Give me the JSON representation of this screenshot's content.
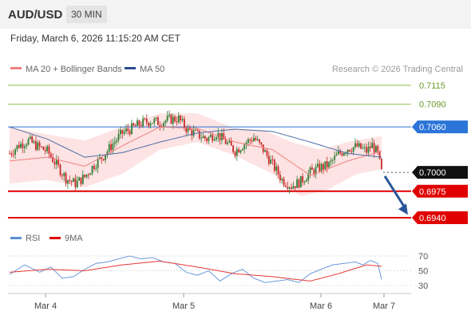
{
  "header": {
    "pair": "AUD/USD",
    "interval": "30 MIN"
  },
  "datetime": "Friday, March 6, 2026 11:15:20 AM CET",
  "legend": {
    "ma20_bb": "MA 20 + Bollinger Bands",
    "ma50": "MA 50",
    "rsi": "RSI",
    "rsi_ma": "9MA",
    "credit": "Research © 2026 Trading Central"
  },
  "colors": {
    "up": "#2e7d32",
    "down": "#c62828",
    "ma20": "#f08080",
    "band_fill": "#fde0e0",
    "ma50": "#4a6ea9",
    "resistance_green": "#8bc34a",
    "pivot": "#2b74d8",
    "support": "#e00000",
    "rsi": "#5b8fd6",
    "rsi_ma": "#e53935",
    "arrow": "#2a5699"
  },
  "chart_data": [
    {
      "type": "candlestick",
      "title": "AUD/USD",
      "interval": "30 MIN",
      "x_ticks": [
        "Mar 4",
        "Mar 5",
        "Mar 6",
        "Mar 7"
      ],
      "y_range": [
        0.6935,
        0.7125
      ],
      "levels": [
        {
          "value": "0.7115",
          "kind": "resistance",
          "color": "#8bc34a"
        },
        {
          "value": "0.7090",
          "kind": "resistance",
          "color": "#8bc34a"
        },
        {
          "value": "0.7060",
          "kind": "pivot",
          "color": "#2b74d8"
        },
        {
          "value": "0.7000",
          "kind": "last",
          "color": "#111111"
        },
        {
          "value": "0.6975",
          "kind": "support",
          "color": "#e00000"
        },
        {
          "value": "0.6940",
          "kind": "support",
          "color": "#e00000"
        }
      ],
      "close_path": [
        [
          0,
          0.7025
        ],
        [
          5,
          0.7036
        ],
        [
          10,
          0.7042
        ],
        [
          15,
          0.7034
        ],
        [
          20,
          0.7028
        ],
        [
          25,
          0.701
        ],
        [
          30,
          0.6992
        ],
        [
          35,
          0.6985
        ],
        [
          40,
          0.6994
        ],
        [
          45,
          0.701
        ],
        [
          50,
          0.7022
        ],
        [
          55,
          0.7038
        ],
        [
          60,
          0.7052
        ],
        [
          65,
          0.7058
        ],
        [
          70,
          0.7065
        ],
        [
          75,
          0.7068
        ],
        [
          80,
          0.7066
        ],
        [
          85,
          0.707
        ],
        [
          90,
          0.7071
        ],
        [
          92,
          0.7064
        ],
        [
          95,
          0.7056
        ],
        [
          100,
          0.705
        ],
        [
          105,
          0.7044
        ],
        [
          110,
          0.7052
        ],
        [
          115,
          0.704
        ],
        [
          120,
          0.7028
        ],
        [
          125,
          0.7038
        ],
        [
          130,
          0.7046
        ],
        [
          135,
          0.703
        ],
        [
          140,
          0.701
        ],
        [
          145,
          0.699
        ],
        [
          150,
          0.6982
        ],
        [
          155,
          0.6988
        ],
        [
          160,
          0.7
        ],
        [
          165,
          0.7006
        ],
        [
          170,
          0.701
        ],
        [
          175,
          0.7024
        ],
        [
          180,
          0.7032
        ],
        [
          185,
          0.7034
        ],
        [
          190,
          0.7028
        ],
        [
          193,
          0.7036
        ],
        [
          196,
          0.7024
        ],
        [
          198,
          0.7
        ]
      ],
      "ma20_path": [
        [
          0,
          0.7015
        ],
        [
          20,
          0.702
        ],
        [
          40,
          0.7008
        ],
        [
          60,
          0.7035
        ],
        [
          80,
          0.706
        ],
        [
          100,
          0.7058
        ],
        [
          120,
          0.704
        ],
        [
          140,
          0.703
        ],
        [
          160,
          0.6996
        ],
        [
          180,
          0.7015
        ],
        [
          198,
          0.7028
        ]
      ],
      "band_upper": [
        [
          0,
          0.706
        ],
        [
          20,
          0.705
        ],
        [
          40,
          0.7042
        ],
        [
          60,
          0.706
        ],
        [
          80,
          0.7078
        ],
        [
          100,
          0.7078
        ],
        [
          120,
          0.7058
        ],
        [
          135,
          0.7056
        ],
        [
          150,
          0.704
        ],
        [
          165,
          0.703
        ],
        [
          180,
          0.704
        ],
        [
          198,
          0.7048
        ]
      ],
      "band_lower": [
        [
          0,
          0.6985
        ],
        [
          20,
          0.699
        ],
        [
          40,
          0.698
        ],
        [
          60,
          0.6998
        ],
        [
          80,
          0.703
        ],
        [
          100,
          0.704
        ],
        [
          120,
          0.7022
        ],
        [
          140,
          0.6998
        ],
        [
          155,
          0.6968
        ],
        [
          170,
          0.6978
        ],
        [
          185,
          0.6998
        ],
        [
          198,
          0.7004
        ]
      ],
      "ma50_path": [
        [
          0,
          0.706
        ],
        [
          20,
          0.7044
        ],
        [
          40,
          0.702
        ],
        [
          60,
          0.7026
        ],
        [
          80,
          0.704
        ],
        [
          100,
          0.7052
        ],
        [
          120,
          0.7057
        ],
        [
          140,
          0.7054
        ],
        [
          160,
          0.704
        ],
        [
          180,
          0.7025
        ],
        [
          198,
          0.702
        ]
      ],
      "projection": {
        "from": [
          198,
          0.6995
        ],
        "to": [
          212,
          0.6944
        ]
      }
    },
    {
      "type": "line",
      "title": "RSI",
      "y_ticks": [
        "70",
        "50",
        "30"
      ],
      "y_range": [
        25,
        75
      ],
      "rsi_path": [
        [
          0,
          45
        ],
        [
          8,
          58
        ],
        [
          16,
          48
        ],
        [
          22,
          55
        ],
        [
          28,
          40
        ],
        [
          34,
          42
        ],
        [
          40,
          52
        ],
        [
          46,
          60
        ],
        [
          52,
          62
        ],
        [
          58,
          66
        ],
        [
          64,
          70
        ],
        [
          70,
          66
        ],
        [
          76,
          68
        ],
        [
          82,
          62
        ],
        [
          88,
          60
        ],
        [
          94,
          48
        ],
        [
          100,
          44
        ],
        [
          106,
          50
        ],
        [
          112,
          36
        ],
        [
          118,
          46
        ],
        [
          124,
          52
        ],
        [
          130,
          40
        ],
        [
          136,
          34
        ],
        [
          142,
          36
        ],
        [
          148,
          38
        ],
        [
          154,
          34
        ],
        [
          160,
          46
        ],
        [
          166,
          52
        ],
        [
          172,
          58
        ],
        [
          178,
          60
        ],
        [
          184,
          62
        ],
        [
          188,
          58
        ],
        [
          192,
          64
        ],
        [
          196,
          60
        ],
        [
          198,
          38
        ]
      ],
      "rsi_ma_path": [
        [
          0,
          48
        ],
        [
          20,
          52
        ],
        [
          40,
          50
        ],
        [
          60,
          58
        ],
        [
          80,
          63
        ],
        [
          100,
          55
        ],
        [
          120,
          46
        ],
        [
          140,
          42
        ],
        [
          160,
          36
        ],
        [
          175,
          46
        ],
        [
          190,
          58
        ],
        [
          198,
          56
        ]
      ]
    }
  ]
}
